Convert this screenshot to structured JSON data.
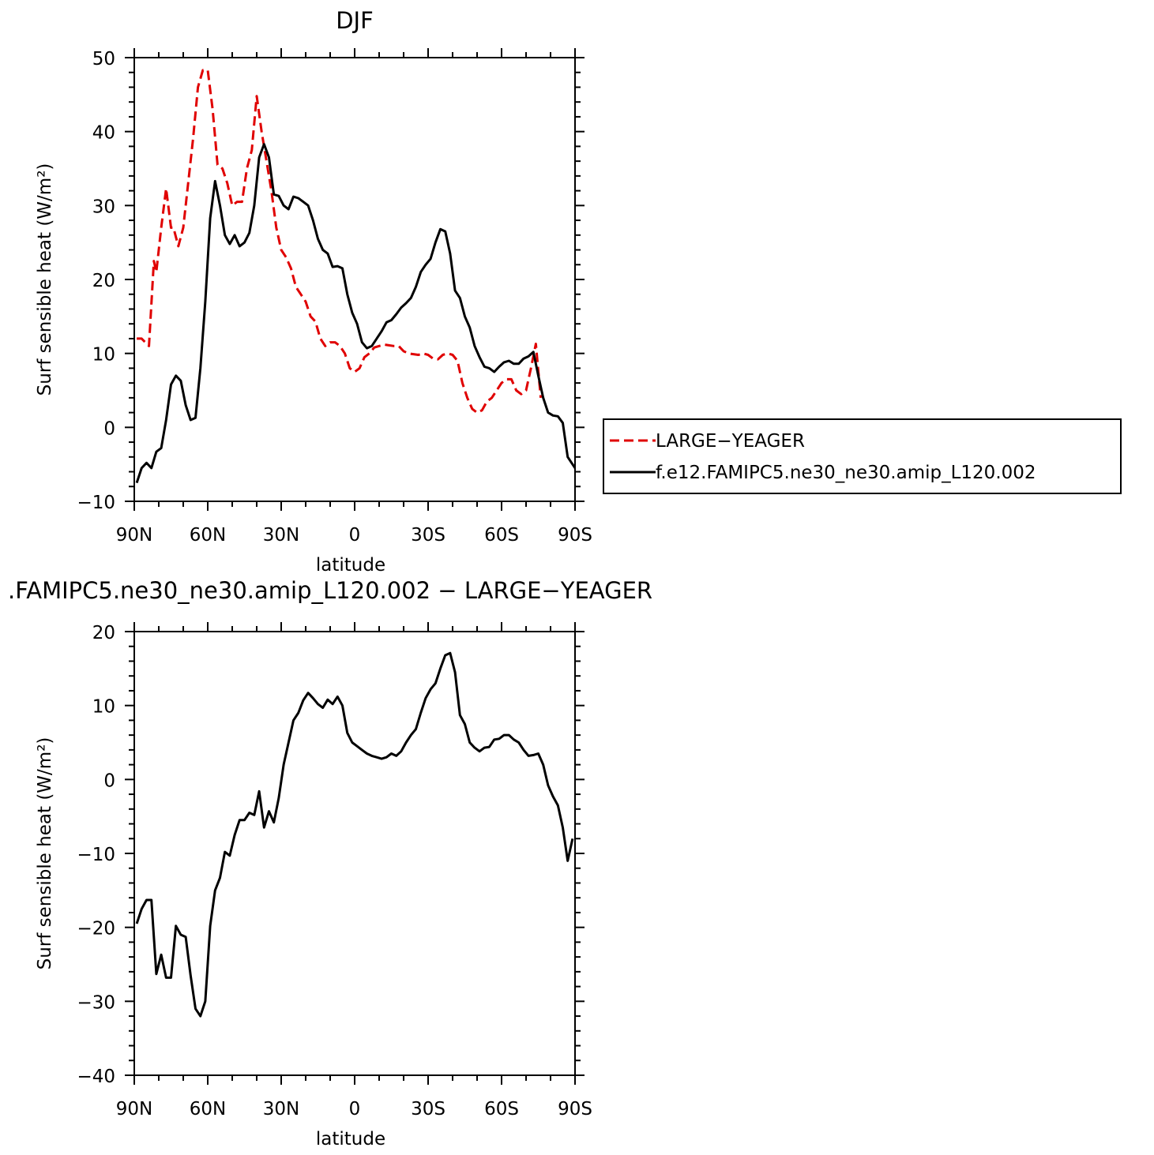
{
  "chart_data": [
    {
      "type": "line",
      "title": "DJF",
      "xlabel": "latitude",
      "ylabel": "Surf sensible heat (W/m²)",
      "xlim": [
        90,
        -90
      ],
      "ylim": [
        -10,
        50
      ],
      "xticks": [
        90,
        60,
        30,
        0,
        -30,
        -60,
        -90
      ],
      "xtick_labels": [
        "90N",
        "60N",
        "30N",
        "0",
        "30S",
        "60S",
        "90S"
      ],
      "yticks": [
        -10,
        0,
        10,
        20,
        30,
        40,
        50
      ],
      "ytick_labels": [
        "−10",
        "0",
        "10",
        "20",
        "30",
        "40",
        "50"
      ],
      "legend_position": "right",
      "series": [
        {
          "name": "LARGE−YEAGER",
          "color": "#e00000",
          "dash": true,
          "points": [
            [
              89,
              12
            ],
            [
              87,
              12
            ],
            [
              84,
              11
            ],
            [
              82,
              22.5
            ],
            [
              81,
              21
            ],
            [
              79,
              27
            ],
            [
              77,
              32.3
            ],
            [
              75,
              27
            ],
            [
              74,
              27
            ],
            [
              72,
              24.5
            ],
            [
              70,
              27
            ],
            [
              68,
              33
            ],
            [
              66,
              39
            ],
            [
              64,
              46
            ],
            [
              62,
              48.3
            ],
            [
              60,
              48.3
            ],
            [
              58,
              43
            ],
            [
              56,
              35.5
            ],
            [
              54,
              35
            ],
            [
              52,
              33
            ],
            [
              50,
              30
            ],
            [
              48,
              30.5
            ],
            [
              46,
              30.5
            ],
            [
              44,
              35
            ],
            [
              42,
              37.5
            ],
            [
              40,
              44.8
            ],
            [
              38,
              40
            ],
            [
              36,
              36
            ],
            [
              34,
              32
            ],
            [
              32,
              27
            ],
            [
              30,
              24
            ],
            [
              28,
              23
            ],
            [
              26,
              21.5
            ],
            [
              24,
              19
            ],
            [
              22,
              18
            ],
            [
              20,
              17
            ],
            [
              18,
              15
            ],
            [
              16,
              14.3
            ],
            [
              14,
              12
            ],
            [
              12,
              11
            ],
            [
              10,
              11.5
            ],
            [
              8,
              11.5
            ],
            [
              6,
              11
            ],
            [
              4,
              10
            ],
            [
              2,
              8
            ],
            [
              0,
              7.5
            ],
            [
              -2,
              8
            ],
            [
              -4,
              9.5
            ],
            [
              -6,
              10
            ],
            [
              -8,
              10.8
            ],
            [
              -10,
              11
            ],
            [
              -12,
              11.2
            ],
            [
              -14,
              11.1
            ],
            [
              -16,
              11
            ],
            [
              -18,
              11
            ],
            [
              -20,
              10.3
            ],
            [
              -22,
              10
            ],
            [
              -24,
              9.9
            ],
            [
              -26,
              9.8
            ],
            [
              -28,
              10
            ],
            [
              -30,
              9.8
            ],
            [
              -32,
              9.3
            ],
            [
              -34,
              9.2
            ],
            [
              -36,
              9.8
            ],
            [
              -38,
              10
            ],
            [
              -40,
              9.8
            ],
            [
              -42,
              9
            ],
            [
              -44,
              6
            ],
            [
              -46,
              4
            ],
            [
              -48,
              2.5
            ],
            [
              -50,
              2
            ],
            [
              -52,
              2.3
            ],
            [
              -54,
              3.5
            ],
            [
              -56,
              4
            ],
            [
              -58,
              5
            ],
            [
              -60,
              6
            ],
            [
              -62,
              6.5
            ],
            [
              -64,
              6.5
            ],
            [
              -66,
              5
            ],
            [
              -68,
              4.5
            ],
            [
              -70,
              5
            ],
            [
              -72,
              8
            ],
            [
              -74,
              11.3
            ],
            [
              -76,
              4
            ]
          ]
        },
        {
          "name": "f.e12.FAMIPC5.ne30_ne30.amip_L120.002",
          "color": "#000000",
          "dash": false,
          "points": [
            [
              89,
              -7.5
            ],
            [
              87,
              -5.5
            ],
            [
              85,
              -4.8
            ],
            [
              83,
              -5.5
            ],
            [
              81,
              -3.3
            ],
            [
              79,
              -2.8
            ],
            [
              77,
              1
            ],
            [
              75,
              5.8
            ],
            [
              73,
              7
            ],
            [
              71,
              6.3
            ],
            [
              69,
              3
            ],
            [
              67,
              1
            ],
            [
              65,
              1.3
            ],
            [
              63,
              8
            ],
            [
              61,
              17
            ],
            [
              59,
              28.3
            ],
            [
              57,
              33.3
            ],
            [
              55,
              30
            ],
            [
              53,
              26
            ],
            [
              51,
              24.8
            ],
            [
              49,
              26
            ],
            [
              47,
              24.5
            ],
            [
              45,
              25
            ],
            [
              43,
              26.3
            ],
            [
              41,
              30
            ],
            [
              39,
              36.5
            ],
            [
              37,
              38.3
            ],
            [
              35,
              36.5
            ],
            [
              33,
              31.5
            ],
            [
              31,
              31.3
            ],
            [
              29,
              30
            ],
            [
              27,
              29.5
            ],
            [
              25,
              31.2
            ],
            [
              23,
              31
            ],
            [
              21,
              30.5
            ],
            [
              19,
              30
            ],
            [
              17,
              28
            ],
            [
              15,
              25.5
            ],
            [
              13,
              24
            ],
            [
              11,
              23.5
            ],
            [
              9,
              21.7
            ],
            [
              7,
              21.8
            ],
            [
              5,
              21.5
            ],
            [
              3,
              18
            ],
            [
              1,
              15.5
            ],
            [
              -1,
              14
            ],
            [
              -3,
              11.5
            ],
            [
              -5,
              10.7
            ],
            [
              -7,
              11
            ],
            [
              -9,
              12
            ],
            [
              -11,
              13
            ],
            [
              -13,
              14.2
            ],
            [
              -15,
              14.5
            ],
            [
              -17,
              15.3
            ],
            [
              -19,
              16.2
            ],
            [
              -21,
              16.8
            ],
            [
              -23,
              17.5
            ],
            [
              -25,
              19
            ],
            [
              -27,
              21
            ],
            [
              -29,
              22
            ],
            [
              -31,
              22.8
            ],
            [
              -33,
              25
            ],
            [
              -35,
              26.8
            ],
            [
              -37,
              26.5
            ],
            [
              -39,
              23.5
            ],
            [
              -41,
              18.5
            ],
            [
              -43,
              17.5
            ],
            [
              -45,
              15
            ],
            [
              -47,
              13.5
            ],
            [
              -49,
              11
            ],
            [
              -51,
              9.5
            ],
            [
              -53,
              8.2
            ],
            [
              -55,
              8
            ],
            [
              -57,
              7.5
            ],
            [
              -59,
              8.2
            ],
            [
              -61,
              8.8
            ],
            [
              -63,
              9
            ],
            [
              -65,
              8.6
            ],
            [
              -67,
              8.6
            ],
            [
              -69,
              9.3
            ],
            [
              -71,
              9.6
            ],
            [
              -73,
              10.2
            ],
            [
              -75,
              7
            ],
            [
              -77,
              4
            ],
            [
              -79,
              2
            ],
            [
              -81,
              1.6
            ],
            [
              -83,
              1.5
            ],
            [
              -85,
              0.6
            ],
            [
              -87,
              -4
            ],
            [
              -89,
              -5
            ],
            [
              -91,
              -6
            ],
            [
              -93,
              -6.8
            ],
            [
              -95,
              -6.5
            ],
            [
              -97,
              -4.8
            ]
          ]
        }
      ]
    },
    {
      "type": "line",
      "title": ".FAMIPC5.ne30_ne30.amip_L120.002 − LARGE−YEAGER",
      "xlabel": "latitude",
      "ylabel": "Surf sensible heat (W/m²)",
      "xlim": [
        90,
        -90
      ],
      "ylim": [
        -40,
        20
      ],
      "xticks": [
        90,
        60,
        30,
        0,
        -30,
        -60,
        -90
      ],
      "xtick_labels": [
        "90N",
        "60N",
        "30N",
        "0",
        "30S",
        "60S",
        "90S"
      ],
      "yticks": [
        -40,
        -30,
        -20,
        -10,
        0,
        10,
        20
      ],
      "ytick_labels": [
        "−40",
        "−30",
        "−20",
        "−10",
        "0",
        "10",
        "20"
      ],
      "series": [
        {
          "name": "",
          "color": "#000000",
          "dash": false,
          "points": [
            [
              89,
              -19.5
            ],
            [
              87,
              -17.5
            ],
            [
              85,
              -16.3
            ],
            [
              83,
              -16.3
            ],
            [
              81,
              -26.3
            ],
            [
              79,
              -23.7
            ],
            [
              77,
              -26.8
            ],
            [
              75,
              -26.8
            ],
            [
              73,
              -19.8
            ],
            [
              71,
              -21
            ],
            [
              69,
              -21.3
            ],
            [
              67,
              -26.5
            ],
            [
              65,
              -31
            ],
            [
              63,
              -32
            ],
            [
              61,
              -30
            ],
            [
              59,
              -19.8
            ],
            [
              57,
              -15
            ],
            [
              55,
              -13.3
            ],
            [
              53,
              -9.8
            ],
            [
              51,
              -10.3
            ],
            [
              49,
              -7.5
            ],
            [
              47,
              -5.5
            ],
            [
              45,
              -5.5
            ],
            [
              43,
              -4.5
            ],
            [
              41,
              -4.8
            ],
            [
              39,
              -1.6
            ],
            [
              37,
              -6.5
            ],
            [
              35,
              -4.3
            ],
            [
              33,
              -5.8
            ],
            [
              31,
              -2.5
            ],
            [
              29,
              2
            ],
            [
              27,
              5
            ],
            [
              25,
              8
            ],
            [
              23,
              9
            ],
            [
              21,
              10.7
            ],
            [
              19,
              11.7
            ],
            [
              17,
              11
            ],
            [
              15,
              10.2
            ],
            [
              13,
              9.7
            ],
            [
              11,
              10.8
            ],
            [
              9,
              10.2
            ],
            [
              7,
              11.2
            ],
            [
              5,
              10
            ],
            [
              3,
              6.3
            ],
            [
              1,
              5
            ],
            [
              -1,
              4.5
            ],
            [
              -3,
              4
            ],
            [
              -5,
              3.5
            ],
            [
              -7,
              3.2
            ],
            [
              -9,
              3
            ],
            [
              -11,
              2.8
            ],
            [
              -13,
              3
            ],
            [
              -15,
              3.5
            ],
            [
              -17,
              3.2
            ],
            [
              -19,
              3.8
            ],
            [
              -21,
              5
            ],
            [
              -23,
              6
            ],
            [
              -25,
              6.8
            ],
            [
              -27,
              9
            ],
            [
              -29,
              11
            ],
            [
              -31,
              12.2
            ],
            [
              -33,
              13
            ],
            [
              -35,
              15
            ],
            [
              -37,
              16.8
            ],
            [
              -39,
              17.1
            ],
            [
              -41,
              14.5
            ],
            [
              -43,
              8.7
            ],
            [
              -45,
              7.5
            ],
            [
              -47,
              5
            ],
            [
              -49,
              4.3
            ],
            [
              -51,
              3.8
            ],
            [
              -53,
              4.3
            ],
            [
              -55,
              4.4
            ],
            [
              -57,
              5.4
            ],
            [
              -59,
              5.5
            ],
            [
              -61,
              6
            ],
            [
              -63,
              6
            ],
            [
              -65,
              5.4
            ],
            [
              -67,
              5
            ],
            [
              -69,
              4
            ],
            [
              -71,
              3.2
            ],
            [
              -73,
              3.3
            ],
            [
              -75,
              3.5
            ],
            [
              -77,
              2
            ],
            [
              -79,
              -0.8
            ],
            [
              -81,
              -2.3
            ],
            [
              -83,
              -3.5
            ],
            [
              -85,
              -6.5
            ],
            [
              -87,
              -11
            ],
            [
              -89,
              -8
            ]
          ]
        }
      ]
    }
  ]
}
